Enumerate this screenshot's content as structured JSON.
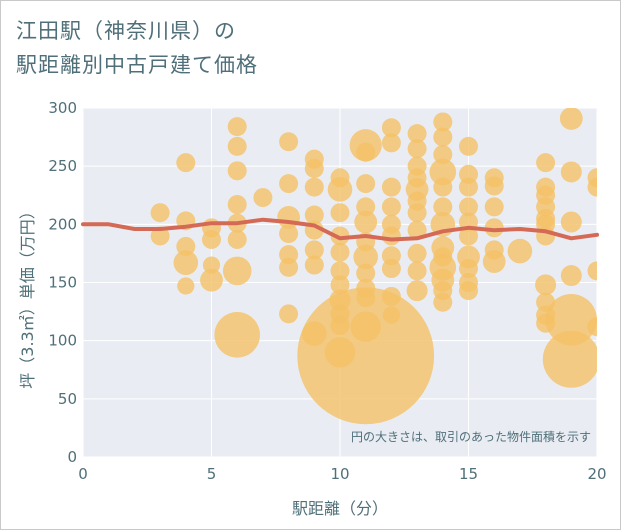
{
  "title_line1": "江田駅（神奈川県）の",
  "title_line2": "駅距離別中古戸建て価格",
  "colors": {
    "plot_bg": "#e9edf3",
    "grid": "#ffffff",
    "bubble": "#f4c066",
    "line": "#d46a55",
    "text": "#4f6f79"
  },
  "chart_data": {
    "type": "scatter",
    "title": "江田駅（神奈川県）の駅距離別中古戸建て価格",
    "xlabel": "駅距離（分）",
    "ylabel": "坪（3.3㎡）単価（万円）",
    "xlim": [
      0,
      20
    ],
    "ylim": [
      0,
      300
    ],
    "xticks": [
      0,
      5,
      10,
      15,
      20
    ],
    "yticks": [
      0,
      50,
      100,
      150,
      200,
      250,
      300
    ],
    "note": "円の大きさは、取引のあった物件面積を示す",
    "bubbles": [
      {
        "x": 3,
        "y": 210,
        "s": 1
      },
      {
        "x": 3,
        "y": 190,
        "s": 1
      },
      {
        "x": 4,
        "y": 253,
        "s": 1
      },
      {
        "x": 4,
        "y": 203,
        "s": 1
      },
      {
        "x": 4,
        "y": 181,
        "s": 1
      },
      {
        "x": 4,
        "y": 167,
        "s": 1.3
      },
      {
        "x": 4,
        "y": 147,
        "s": 0.9
      },
      {
        "x": 5,
        "y": 197,
        "s": 1
      },
      {
        "x": 5,
        "y": 187,
        "s": 1
      },
      {
        "x": 5,
        "y": 165,
        "s": 0.9
      },
      {
        "x": 5,
        "y": 152,
        "s": 1.2
      },
      {
        "x": 6,
        "y": 284,
        "s": 1
      },
      {
        "x": 6,
        "y": 267,
        "s": 1
      },
      {
        "x": 6,
        "y": 246,
        "s": 1
      },
      {
        "x": 6,
        "y": 217,
        "s": 1
      },
      {
        "x": 6,
        "y": 201,
        "s": 1
      },
      {
        "x": 6,
        "y": 187,
        "s": 1
      },
      {
        "x": 6,
        "y": 160,
        "s": 1.5
      },
      {
        "x": 6,
        "y": 105,
        "s": 2.4
      },
      {
        "x": 7,
        "y": 223,
        "s": 1
      },
      {
        "x": 8,
        "y": 271,
        "s": 1
      },
      {
        "x": 8,
        "y": 235,
        "s": 1
      },
      {
        "x": 8,
        "y": 206,
        "s": 1.2
      },
      {
        "x": 8,
        "y": 192,
        "s": 1
      },
      {
        "x": 8,
        "y": 174,
        "s": 1
      },
      {
        "x": 8,
        "y": 163,
        "s": 1
      },
      {
        "x": 8,
        "y": 123,
        "s": 1
      },
      {
        "x": 9,
        "y": 256,
        "s": 1
      },
      {
        "x": 9,
        "y": 248,
        "s": 1
      },
      {
        "x": 9,
        "y": 232,
        "s": 1
      },
      {
        "x": 9,
        "y": 208,
        "s": 1
      },
      {
        "x": 9,
        "y": 195,
        "s": 1
      },
      {
        "x": 9,
        "y": 178,
        "s": 1
      },
      {
        "x": 9,
        "y": 165,
        "s": 1
      },
      {
        "x": 9,
        "y": 106,
        "s": 1.3
      },
      {
        "x": 10,
        "y": 240,
        "s": 1
      },
      {
        "x": 10,
        "y": 230,
        "s": 1.3
      },
      {
        "x": 10,
        "y": 210,
        "s": 1
      },
      {
        "x": 10,
        "y": 190,
        "s": 1
      },
      {
        "x": 10,
        "y": 176,
        "s": 1
      },
      {
        "x": 10,
        "y": 160,
        "s": 1
      },
      {
        "x": 10,
        "y": 148,
        "s": 1
      },
      {
        "x": 10,
        "y": 135,
        "s": 1.1
      },
      {
        "x": 10,
        "y": 123,
        "s": 1
      },
      {
        "x": 10,
        "y": 113,
        "s": 1
      },
      {
        "x": 10,
        "y": 90,
        "s": 1.6
      },
      {
        "x": 11,
        "y": 268,
        "s": 1.7
      },
      {
        "x": 11,
        "y": 262,
        "s": 1
      },
      {
        "x": 11,
        "y": 235,
        "s": 1
      },
      {
        "x": 11,
        "y": 215,
        "s": 1
      },
      {
        "x": 11,
        "y": 202,
        "s": 1.2
      },
      {
        "x": 11,
        "y": 185,
        "s": 1
      },
      {
        "x": 11,
        "y": 172,
        "s": 1.3
      },
      {
        "x": 11,
        "y": 158,
        "s": 1
      },
      {
        "x": 11,
        "y": 145,
        "s": 1
      },
      {
        "x": 11,
        "y": 137,
        "s": 1
      },
      {
        "x": 11,
        "y": 112,
        "s": 1.6
      },
      {
        "x": 11,
        "y": 87,
        "s": 7.2
      },
      {
        "x": 12,
        "y": 283,
        "s": 1
      },
      {
        "x": 12,
        "y": 270,
        "s": 1
      },
      {
        "x": 12,
        "y": 232,
        "s": 1
      },
      {
        "x": 12,
        "y": 215,
        "s": 1
      },
      {
        "x": 12,
        "y": 200,
        "s": 1
      },
      {
        "x": 12,
        "y": 190,
        "s": 1
      },
      {
        "x": 12,
        "y": 173,
        "s": 1
      },
      {
        "x": 12,
        "y": 162,
        "s": 1
      },
      {
        "x": 12,
        "y": 138,
        "s": 1
      },
      {
        "x": 12,
        "y": 122,
        "s": 0.9
      },
      {
        "x": 13,
        "y": 278,
        "s": 1
      },
      {
        "x": 13,
        "y": 265,
        "s": 1
      },
      {
        "x": 13,
        "y": 250,
        "s": 1
      },
      {
        "x": 13,
        "y": 240,
        "s": 1
      },
      {
        "x": 13,
        "y": 230,
        "s": 1.2
      },
      {
        "x": 13,
        "y": 220,
        "s": 1
      },
      {
        "x": 13,
        "y": 210,
        "s": 1
      },
      {
        "x": 13,
        "y": 195,
        "s": 1
      },
      {
        "x": 13,
        "y": 175,
        "s": 1
      },
      {
        "x": 13,
        "y": 160,
        "s": 1
      },
      {
        "x": 13,
        "y": 143,
        "s": 1.1
      },
      {
        "x": 14,
        "y": 288,
        "s": 1
      },
      {
        "x": 14,
        "y": 275,
        "s": 1
      },
      {
        "x": 14,
        "y": 260,
        "s": 1
      },
      {
        "x": 14,
        "y": 245,
        "s": 1.4
      },
      {
        "x": 14,
        "y": 232,
        "s": 1
      },
      {
        "x": 14,
        "y": 215,
        "s": 1
      },
      {
        "x": 14,
        "y": 200,
        "s": 1.3
      },
      {
        "x": 14,
        "y": 180,
        "s": 1.2
      },
      {
        "x": 14,
        "y": 172,
        "s": 1
      },
      {
        "x": 14,
        "y": 163,
        "s": 1.4
      },
      {
        "x": 14,
        "y": 152,
        "s": 1.2
      },
      {
        "x": 14,
        "y": 143,
        "s": 1
      },
      {
        "x": 14,
        "y": 133,
        "s": 1
      },
      {
        "x": 15,
        "y": 267,
        "s": 1
      },
      {
        "x": 15,
        "y": 243,
        "s": 1
      },
      {
        "x": 15,
        "y": 232,
        "s": 1
      },
      {
        "x": 15,
        "y": 215,
        "s": 1
      },
      {
        "x": 15,
        "y": 202,
        "s": 1
      },
      {
        "x": 15,
        "y": 190,
        "s": 1
      },
      {
        "x": 15,
        "y": 172,
        "s": 1.2
      },
      {
        "x": 15,
        "y": 162,
        "s": 1
      },
      {
        "x": 15,
        "y": 150,
        "s": 1
      },
      {
        "x": 15,
        "y": 143,
        "s": 1
      },
      {
        "x": 16,
        "y": 240,
        "s": 1
      },
      {
        "x": 16,
        "y": 233,
        "s": 1
      },
      {
        "x": 16,
        "y": 215,
        "s": 1
      },
      {
        "x": 16,
        "y": 197,
        "s": 1
      },
      {
        "x": 16,
        "y": 178,
        "s": 1
      },
      {
        "x": 16,
        "y": 168,
        "s": 1.2
      },
      {
        "x": 17,
        "y": 177,
        "s": 1.3
      },
      {
        "x": 18,
        "y": 253,
        "s": 1
      },
      {
        "x": 18,
        "y": 232,
        "s": 1
      },
      {
        "x": 18,
        "y": 225,
        "s": 1
      },
      {
        "x": 18,
        "y": 215,
        "s": 1
      },
      {
        "x": 18,
        "y": 205,
        "s": 1
      },
      {
        "x": 18,
        "y": 200,
        "s": 1
      },
      {
        "x": 18,
        "y": 190,
        "s": 1
      },
      {
        "x": 18,
        "y": 148,
        "s": 1.1
      },
      {
        "x": 18,
        "y": 133,
        "s": 1
      },
      {
        "x": 18,
        "y": 122,
        "s": 1
      },
      {
        "x": 18,
        "y": 115,
        "s": 1
      },
      {
        "x": 19,
        "y": 291,
        "s": 1.2
      },
      {
        "x": 19,
        "y": 245,
        "s": 1.1
      },
      {
        "x": 19,
        "y": 202,
        "s": 1.1
      },
      {
        "x": 19,
        "y": 156,
        "s": 1.1
      },
      {
        "x": 19,
        "y": 118,
        "s": 2.7
      },
      {
        "x": 19,
        "y": 84,
        "s": 3.0
      },
      {
        "x": 20,
        "y": 240,
        "s": 1
      },
      {
        "x": 20,
        "y": 232,
        "s": 1
      },
      {
        "x": 20,
        "y": 160,
        "s": 1
      },
      {
        "x": 20,
        "y": 112,
        "s": 1
      }
    ],
    "trend": {
      "x": [
        0,
        1,
        2,
        3,
        4,
        5,
        6,
        7,
        8,
        9,
        10,
        11,
        12,
        13,
        14,
        15,
        16,
        17,
        18,
        19,
        20
      ],
      "y": [
        200,
        200,
        196,
        196,
        198,
        201,
        201,
        204,
        202,
        199,
        188,
        190,
        187,
        188,
        194,
        197,
        195,
        196,
        194,
        188,
        191
      ]
    }
  }
}
